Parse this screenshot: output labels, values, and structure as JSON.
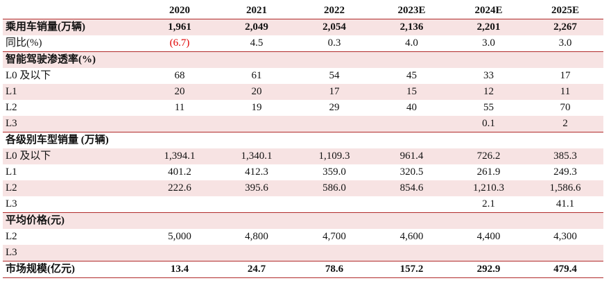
{
  "years": [
    "2020",
    "2021",
    "2022",
    "2023E",
    "2024E",
    "2025E"
  ],
  "rows": [
    {
      "label": "乘用车销量(万辆)",
      "values": [
        "1,961",
        "2,049",
        "2,054",
        "2,136",
        "2,201",
        "2,267"
      ],
      "style": "bold"
    },
    {
      "label": "同比(%)",
      "values": [
        "(6.7)",
        "4.5",
        "0.3",
        "4.0",
        "3.0",
        "3.0"
      ],
      "style": "normal"
    },
    {
      "label": "智能驾驶渗透率(%)",
      "values": [
        "",
        "",
        "",
        "",
        "",
        ""
      ],
      "style": "section"
    },
    {
      "label": "L0 及以下",
      "values": [
        "68",
        "61",
        "54",
        "45",
        "33",
        "17"
      ],
      "style": "normal"
    },
    {
      "label": "L1",
      "values": [
        "20",
        "20",
        "17",
        "15",
        "12",
        "11"
      ],
      "style": "normal"
    },
    {
      "label": "L2",
      "values": [
        "11",
        "19",
        "29",
        "40",
        "55",
        "70"
      ],
      "style": "normal"
    },
    {
      "label": "L3",
      "values": [
        "",
        "",
        "",
        "",
        "0.1",
        "2"
      ],
      "style": "normal"
    },
    {
      "label": "各级别车型销量 (万辆)",
      "values": [
        "",
        "",
        "",
        "",
        "",
        ""
      ],
      "style": "section"
    },
    {
      "label": "L0 及以下",
      "values": [
        "1,394.1",
        "1,340.1",
        "1,109.3",
        "961.4",
        "726.2",
        "385.3"
      ],
      "style": "normal"
    },
    {
      "label": "L1",
      "values": [
        "401.2",
        "412.3",
        "359.0",
        "320.5",
        "261.9",
        "249.3"
      ],
      "style": "normal"
    },
    {
      "label": "L2",
      "values": [
        "222.6",
        "395.6",
        "586.0",
        "854.6",
        "1,210.3",
        "1,586.6"
      ],
      "style": "normal"
    },
    {
      "label": "L3",
      "values": [
        "",
        "",
        "",
        "",
        "2.1",
        "41.1"
      ],
      "style": "normal"
    },
    {
      "label": "平均价格(元)",
      "values": [
        "",
        "",
        "",
        "",
        "",
        ""
      ],
      "style": "section"
    },
    {
      "label": "L2",
      "values": [
        "5,000",
        "4,800",
        "4,700",
        "4,600",
        "4,400",
        "4,300"
      ],
      "style": "normal"
    },
    {
      "label": "L3",
      "values": [
        "",
        "",
        "",
        "",
        "",
        ""
      ],
      "style": "normal"
    },
    {
      "label": "市场规模(亿元)",
      "values": [
        "13.4",
        "24.7",
        "78.6",
        "157.2",
        "292.9",
        "479.4"
      ],
      "style": "bold"
    }
  ],
  "colors": {
    "shade": "#f7e3e3",
    "rule": "#b02a2a",
    "negative": "#e00000"
  }
}
